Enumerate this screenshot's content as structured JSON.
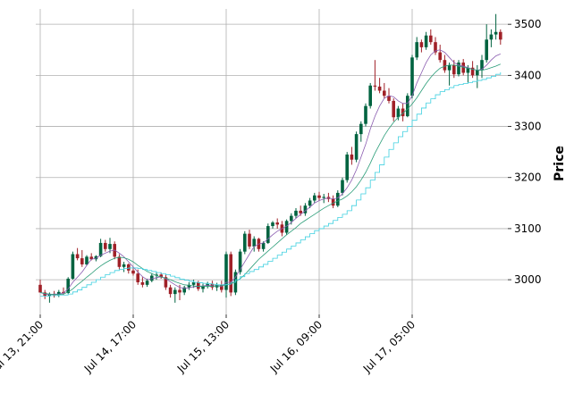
{
  "chart_data": {
    "type": "candlestick",
    "ylabel": "Price",
    "x": [
      "Jul 13, 21:00",
      "Jul 13, 22:00",
      "Jul 13, 23:00",
      "Jul 14, 00:00",
      "Jul 14, 01:00",
      "Jul 14, 02:00",
      "Jul 14, 03:00",
      "Jul 14, 04:00",
      "Jul 14, 05:00",
      "Jul 14, 06:00",
      "Jul 14, 07:00",
      "Jul 14, 08:00",
      "Jul 14, 09:00",
      "Jul 14, 10:00",
      "Jul 14, 11:00",
      "Jul 14, 12:00",
      "Jul 14, 13:00",
      "Jul 14, 14:00",
      "Jul 14, 15:00",
      "Jul 14, 16:00",
      "Jul 14, 17:00",
      "Jul 14, 18:00",
      "Jul 14, 19:00",
      "Jul 14, 20:00",
      "Jul 14, 21:00",
      "Jul 14, 22:00",
      "Jul 14, 23:00",
      "Jul 15, 00:00",
      "Jul 15, 01:00",
      "Jul 15, 02:00",
      "Jul 15, 03:00",
      "Jul 15, 04:00",
      "Jul 15, 05:00",
      "Jul 15, 06:00",
      "Jul 15, 07:00",
      "Jul 15, 08:00",
      "Jul 15, 09:00",
      "Jul 15, 10:00",
      "Jul 15, 11:00",
      "Jul 15, 12:00",
      "Jul 15, 13:00",
      "Jul 15, 14:00",
      "Jul 15, 15:00",
      "Jul 15, 16:00",
      "Jul 15, 17:00",
      "Jul 15, 18:00",
      "Jul 15, 19:00",
      "Jul 15, 20:00",
      "Jul 15, 21:00",
      "Jul 15, 22:00",
      "Jul 15, 23:00",
      "Jul 16, 00:00",
      "Jul 16, 01:00",
      "Jul 16, 02:00",
      "Jul 16, 03:00",
      "Jul 16, 04:00",
      "Jul 16, 05:00",
      "Jul 16, 06:00",
      "Jul 16, 07:00",
      "Jul 16, 08:00",
      "Jul 16, 09:00",
      "Jul 16, 10:00",
      "Jul 16, 11:00",
      "Jul 16, 12:00",
      "Jul 16, 13:00",
      "Jul 16, 14:00",
      "Jul 16, 15:00",
      "Jul 16, 16:00",
      "Jul 16, 17:00",
      "Jul 16, 18:00",
      "Jul 16, 19:00",
      "Jul 16, 20:00",
      "Jul 16, 21:00",
      "Jul 16, 22:00",
      "Jul 16, 23:00",
      "Jul 17, 00:00",
      "Jul 17, 01:00",
      "Jul 17, 02:00",
      "Jul 17, 03:00",
      "Jul 17, 04:00",
      "Jul 17, 05:00",
      "Jul 17, 06:00",
      "Jul 17, 07:00",
      "Jul 17, 08:00",
      "Jul 17, 09:00",
      "Jul 17, 10:00",
      "Jul 17, 11:00",
      "Jul 17, 12:00",
      "Jul 17, 13:00",
      "Jul 17, 14:00",
      "Jul 17, 15:00",
      "Jul 17, 16:00",
      "Jul 17, 17:00",
      "Jul 17, 18:00",
      "Jul 17, 19:00",
      "Jul 17, 20:00",
      "Jul 17, 21:00",
      "Jul 17, 22:00",
      "Jul 17, 23:00",
      "Jul 18, 00:00"
    ],
    "open": [
      2990,
      2975,
      2968,
      2972,
      2970,
      2976,
      2974,
      3002,
      3050,
      3042,
      3030,
      3045,
      3040,
      3046,
      3072,
      3060,
      3070,
      3045,
      3025,
      3030,
      3018,
      3012,
      2995,
      2990,
      2998,
      3008,
      3010,
      3005,
      2985,
      2972,
      2980,
      2975,
      2985,
      2990,
      2995,
      2982,
      2988,
      2992,
      2985,
      2990,
      2980,
      3050,
      2975,
      3015,
      3055,
      3090,
      3065,
      3080,
      3060,
      3072,
      3105,
      3112,
      3108,
      3092,
      3115,
      3125,
      3135,
      3130,
      3145,
      3155,
      3165,
      3160,
      3162,
      3158,
      3145,
      3170,
      3195,
      3245,
      3235,
      3285,
      3305,
      3340,
      3380,
      3378,
      3370,
      3360,
      3350,
      3318,
      3335,
      3320,
      3360,
      3435,
      3465,
      3455,
      3478,
      3465,
      3445,
      3430,
      3410,
      3420,
      3402,
      3425,
      3405,
      3415,
      3400,
      3410,
      3430,
      3470,
      3480,
      3485
    ],
    "high": [
      3000,
      2980,
      2975,
      2978,
      2980,
      2985,
      3005,
      3055,
      3062,
      3058,
      3048,
      3052,
      3048,
      3080,
      3078,
      3082,
      3075,
      3050,
      3035,
      3032,
      3025,
      3020,
      3005,
      3002,
      3012,
      3015,
      3014,
      3010,
      2990,
      2985,
      2990,
      2988,
      2995,
      3000,
      2998,
      2992,
      2996,
      2998,
      2994,
      2998,
      3055,
      3055,
      3020,
      3060,
      3095,
      3098,
      3085,
      3082,
      3075,
      3110,
      3115,
      3120,
      3115,
      3118,
      3130,
      3140,
      3145,
      3150,
      3160,
      3170,
      3172,
      3168,
      3170,
      3165,
      3175,
      3200,
      3250,
      3260,
      3290,
      3310,
      3345,
      3385,
      3430,
      3395,
      3385,
      3375,
      3355,
      3340,
      3345,
      3365,
      3440,
      3475,
      3470,
      3485,
      3490,
      3475,
      3460,
      3440,
      3425,
      3430,
      3430,
      3432,
      3420,
      3428,
      3420,
      3440,
      3500,
      3490,
      3520,
      3490
    ],
    "low": [
      2975,
      2962,
      2955,
      2965,
      2966,
      2970,
      2972,
      3000,
      3038,
      3025,
      3028,
      3038,
      3036,
      3044,
      3055,
      3052,
      3040,
      3020,
      3015,
      3012,
      3008,
      2990,
      2985,
      2986,
      2995,
      3000,
      3002,
      2980,
      2965,
      2955,
      2960,
      2970,
      2980,
      2984,
      2978,
      2975,
      2983,
      2980,
      2978,
      2975,
      2965,
      2968,
      2970,
      3010,
      3050,
      3060,
      3055,
      3055,
      3055,
      3070,
      3100,
      3100,
      3085,
      3088,
      3108,
      3120,
      3125,
      3125,
      3140,
      3150,
      3155,
      3150,
      3152,
      3140,
      3142,
      3165,
      3190,
      3225,
      3230,
      3270,
      3300,
      3335,
      3370,
      3365,
      3355,
      3345,
      3310,
      3312,
      3310,
      3318,
      3355,
      3430,
      3445,
      3450,
      3460,
      3440,
      3425,
      3405,
      3380,
      3395,
      3398,
      3400,
      3385,
      3395,
      3375,
      3395,
      3425,
      3455,
      3470,
      3460
    ],
    "close": [
      2975,
      2968,
      2972,
      2970,
      2976,
      2974,
      3002,
      3050,
      3042,
      3030,
      3045,
      3040,
      3046,
      3072,
      3060,
      3070,
      3045,
      3025,
      3030,
      3018,
      3012,
      2995,
      2990,
      2998,
      3008,
      3010,
      3005,
      2985,
      2972,
      2980,
      2975,
      2985,
      2990,
      2995,
      2982,
      2988,
      2992,
      2985,
      2990,
      2980,
      3050,
      2975,
      3015,
      3055,
      3090,
      3065,
      3080,
      3060,
      3072,
      3105,
      3112,
      3108,
      3092,
      3115,
      3125,
      3135,
      3130,
      3145,
      3155,
      3165,
      3160,
      3162,
      3158,
      3145,
      3170,
      3195,
      3245,
      3235,
      3285,
      3305,
      3340,
      3380,
      3378,
      3370,
      3360,
      3350,
      3318,
      3335,
      3320,
      3360,
      3435,
      3465,
      3455,
      3478,
      3465,
      3445,
      3430,
      3410,
      3420,
      3402,
      3425,
      3405,
      3415,
      3400,
      3410,
      3430,
      3470,
      3480,
      3485,
      3470
    ],
    "up_color": "#006340",
    "down_color": "#a02128",
    "lines": [
      {
        "color": "#8a5cb0",
        "step": false,
        "values": [
          2975,
          2972,
          2971,
          2972,
          2972,
          2974,
          2982,
          2995,
          3005,
          3015,
          3028,
          3040,
          3042,
          3048,
          3052,
          3056,
          3058,
          3052,
          3045,
          3035,
          3025,
          3015,
          3006,
          3000,
          3002,
          3004,
          3006,
          3002,
          2996,
          2990,
          2985,
          2983,
          2984,
          2986,
          2987,
          2988,
          2989,
          2988,
          2988,
          2987,
          2995,
          2995,
          3005,
          3020,
          3035,
          3050,
          3065,
          3070,
          3072,
          3080,
          3088,
          3095,
          3100,
          3105,
          3112,
          3120,
          3128,
          3135,
          3142,
          3150,
          3155,
          3158,
          3160,
          3158,
          3160,
          3168,
          3180,
          3195,
          3215,
          3240,
          3265,
          3295,
          3320,
          3340,
          3355,
          3360,
          3358,
          3350,
          3345,
          3345,
          3360,
          3385,
          3405,
          3425,
          3440,
          3448,
          3450,
          3445,
          3435,
          3425,
          3420,
          3418,
          3415,
          3412,
          3410,
          3412,
          3420,
          3430,
          3438,
          3442
        ]
      },
      {
        "color": "#2a9d78",
        "step": false,
        "values": [
          2975,
          2973,
          2972,
          2971,
          2971,
          2972,
          2976,
          2982,
          2990,
          2997,
          3005,
          3012,
          3020,
          3027,
          3033,
          3038,
          3042,
          3044,
          3043,
          3040,
          3035,
          3028,
          3022,
          3016,
          3012,
          3008,
          3005,
          3003,
          3000,
          2996,
          2993,
          2990,
          2989,
          2988,
          2987,
          2987,
          2987,
          2987,
          2988,
          2988,
          2990,
          2992,
          2996,
          3002,
          3010,
          3020,
          3030,
          3040,
          3048,
          3056,
          3064,
          3072,
          3080,
          3088,
          3095,
          3102,
          3110,
          3116,
          3122,
          3128,
          3134,
          3140,
          3145,
          3150,
          3154,
          3158,
          3164,
          3172,
          3182,
          3195,
          3210,
          3228,
          3248,
          3265,
          3282,
          3296,
          3308,
          3318,
          3326,
          3334,
          3344,
          3356,
          3370,
          3384,
          3396,
          3406,
          3414,
          3418,
          3420,
          3420,
          3418,
          3416,
          3414,
          3412,
          3410,
          3410,
          3412,
          3415,
          3418,
          3422
        ]
      },
      {
        "color": "#40d0e0",
        "step": true,
        "values": [
          2968,
          2968,
          2969,
          2969,
          2970,
          2970,
          2972,
          2976,
          2980,
          2985,
          2990,
          2995,
          3000,
          3005,
          3010,
          3014,
          3018,
          3020,
          3022,
          3023,
          3023,
          3022,
          3020,
          3018,
          3016,
          3014,
          3012,
          3010,
          3007,
          3004,
          3001,
          2999,
          2997,
          2995,
          2994,
          2993,
          2992,
          2991,
          2990,
          2990,
          2991,
          2995,
          3000,
          3006,
          3012,
          3016,
          3020,
          3025,
          3030,
          3036,
          3042,
          3048,
          3054,
          3060,
          3066,
          3072,
          3078,
          3084,
          3090,
          3096,
          3100,
          3105,
          3110,
          3116,
          3122,
          3128,
          3135,
          3145,
          3156,
          3168,
          3180,
          3195,
          3210,
          3225,
          3240,
          3255,
          3268,
          3280,
          3290,
          3300,
          3312,
          3324,
          3336,
          3346,
          3354,
          3362,
          3368,
          3372,
          3376,
          3380,
          3382,
          3384,
          3386,
          3388,
          3390,
          3392,
          3395,
          3398,
          3402,
          3406
        ]
      }
    ],
    "xticks": [
      "Jul 13, 21:00",
      "Jul 14, 17:00",
      "Jul 15, 13:00",
      "Jul 16, 09:00",
      "Jul 17, 05:00"
    ],
    "ylim": [
      2932,
      3530
    ],
    "yticks": [
      3000,
      3100,
      3200,
      3300,
      3400,
      3500
    ],
    "grid": true
  }
}
